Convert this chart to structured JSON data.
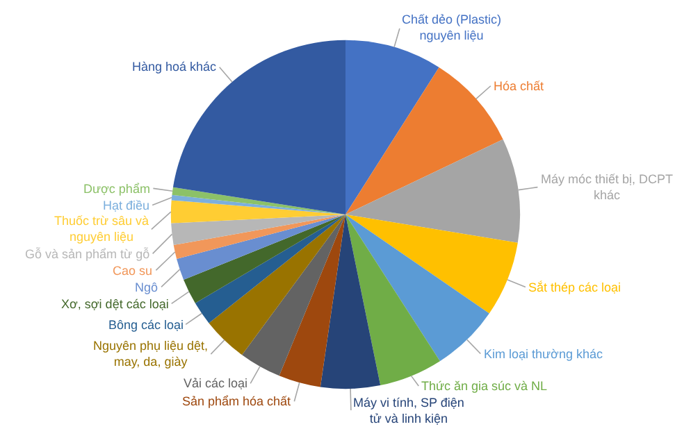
{
  "chart_data": {
    "type": "pie",
    "categories": [
      "Chất dẻo (Plastic) nguyên liệu",
      "Hóa chất",
      "Máy móc thiết bị, DCPT khác",
      "Sắt thép các loại",
      "Kim loại thường khác",
      "Thức ăn gia súc và NL",
      "Máy vi tính, SP điện tử và linh kiện",
      "Sản phẩm hóa chất",
      "Vải các loại",
      "Nguyên phụ liệu dệt, may, da, giày",
      "Bông các loại",
      "Xơ, sợi dệt các loại",
      "Ngô",
      "Cao su",
      "Gỗ và sản phẩm từ gỗ",
      "Thuốc trừ sâu và nguyên liệu",
      "Hạt điều",
      "Dược phẩm",
      "Hàng hoá khác"
    ],
    "values": [
      9,
      8.9,
      9.7,
      7,
      6.3,
      5.9,
      5.5,
      3.9,
      3.9,
      4.2,
      2.2,
      2.4,
      2,
      1.3,
      2,
      2.1,
      0.5,
      0.7,
      22.5
    ],
    "colors": [
      "#4472c4",
      "#ed7d31",
      "#a5a5a5",
      "#ffc000",
      "#5b9bd5",
      "#70ad47",
      "#264478",
      "#9e480e",
      "#636363",
      "#997300",
      "#255e91",
      "#43682b",
      "#698ed0",
      "#f1975a",
      "#b7b7b7",
      "#ffcd33",
      "#7cafdd",
      "#8cc168",
      "#335aa1"
    ]
  }
}
